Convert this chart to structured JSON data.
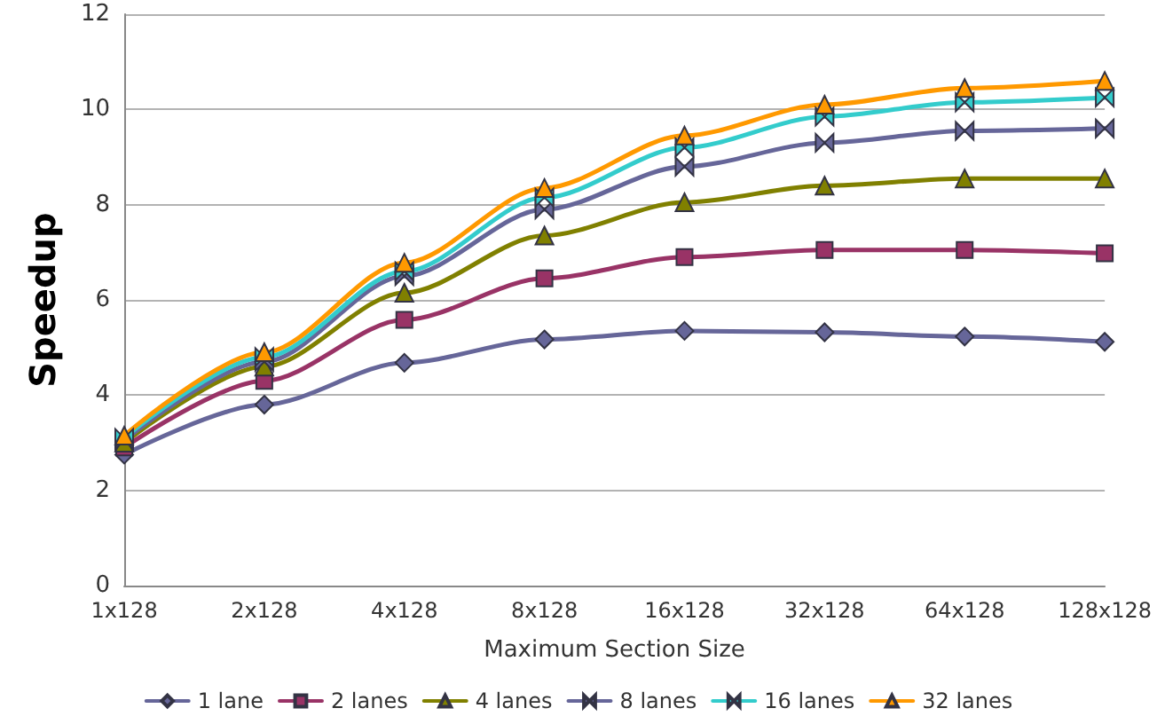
{
  "chart_data": {
    "type": "line",
    "xlabel": "Maximum Section Size",
    "ylabel": "Speedup",
    "categories": [
      "1x128",
      "2x128",
      "4x128",
      "8x128",
      "16x128",
      "32x128",
      "64x128",
      "128x128"
    ],
    "series": [
      {
        "name": "1 lane",
        "color": "#666699",
        "marker": "diamond",
        "values": [
          2.75,
          3.8,
          4.68,
          5.17,
          5.35,
          5.32,
          5.23,
          5.12
        ]
      },
      {
        "name": "2 lanes",
        "color": "#993366",
        "marker": "square",
        "values": [
          2.9,
          4.3,
          5.58,
          6.45,
          6.9,
          7.05,
          7.05,
          6.98
        ]
      },
      {
        "name": "4 lanes",
        "color": "#808000",
        "marker": "triangle",
        "values": [
          3.0,
          4.6,
          6.15,
          7.35,
          8.05,
          8.4,
          8.55,
          8.55
        ]
      },
      {
        "name": "8 lanes",
        "color": "#666699",
        "marker": "cross",
        "values": [
          3.05,
          4.7,
          6.5,
          7.9,
          8.8,
          9.3,
          9.55,
          9.6
        ]
      },
      {
        "name": "16 lanes",
        "color": "#33cccc",
        "marker": "cross",
        "values": [
          3.1,
          4.8,
          6.6,
          8.15,
          9.2,
          9.85,
          10.15,
          10.25
        ]
      },
      {
        "name": "32 lanes",
        "color": "#ff9900",
        "marker": "triangle",
        "values": [
          3.15,
          4.9,
          6.78,
          8.35,
          9.45,
          10.1,
          10.45,
          10.6
        ]
      }
    ],
    "ylim": [
      0,
      12
    ],
    "yticks": [
      0,
      2,
      4,
      6,
      8,
      10,
      12
    ],
    "grid": "y",
    "legend": "bottom"
  }
}
